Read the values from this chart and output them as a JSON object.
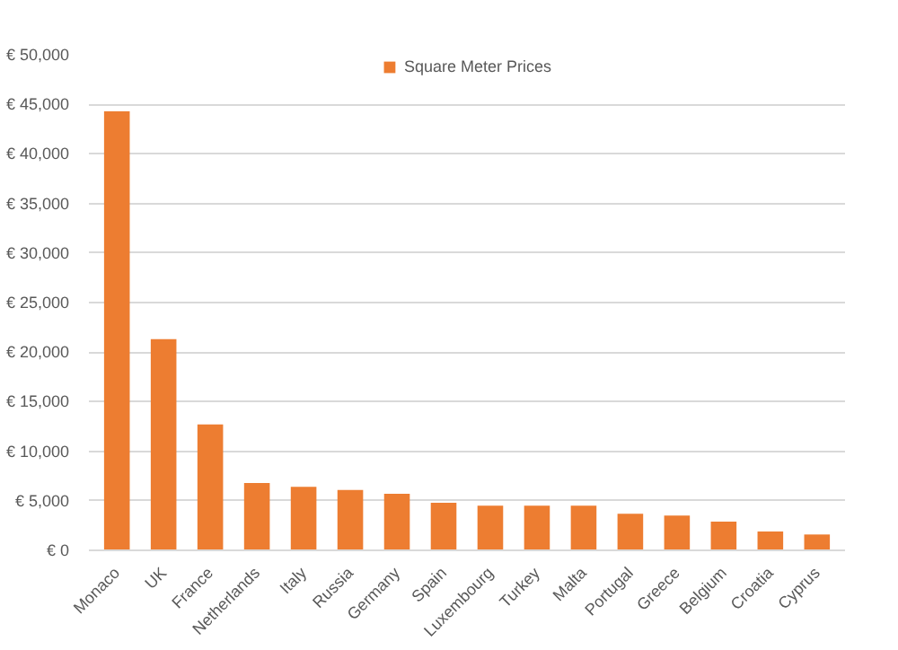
{
  "chart_data": {
    "type": "bar",
    "categories": [
      "Monaco",
      "UK",
      "France",
      "Netherlands",
      "Italy",
      "Russia",
      "Germany",
      "Spain",
      "Luxembourg",
      "Turkey",
      "Malta",
      "Portugal",
      "Greece",
      "Belgium",
      "Croatia",
      "Cyprus"
    ],
    "series": [
      {
        "name": "Square Meter Prices",
        "color": "#ed7d31",
        "values": [
          44300,
          21300,
          12700,
          6800,
          6400,
          6100,
          5700,
          4800,
          4500,
          4500,
          4500,
          3700,
          3500,
          2900,
          1900,
          1600
        ]
      }
    ],
    "ylim": [
      0,
      50000
    ],
    "yticks": [
      {
        "value": 0,
        "label": "€ 0"
      },
      {
        "value": 5000,
        "label": "€ 5,000"
      },
      {
        "value": 10000,
        "label": "€ 10,000"
      },
      {
        "value": 15000,
        "label": "€ 15,000"
      },
      {
        "value": 20000,
        "label": "€ 20,000"
      },
      {
        "value": 25000,
        "label": "€ 25,000"
      },
      {
        "value": 30000,
        "label": "€ 30,000"
      },
      {
        "value": 35000,
        "label": "€ 35,000"
      },
      {
        "value": 40000,
        "label": "€ 40,000"
      },
      {
        "value": 45000,
        "label": "€ 45,000"
      },
      {
        "value": 50000,
        "label": "€ 50,000"
      }
    ],
    "grid": "y",
    "legend": "top"
  }
}
